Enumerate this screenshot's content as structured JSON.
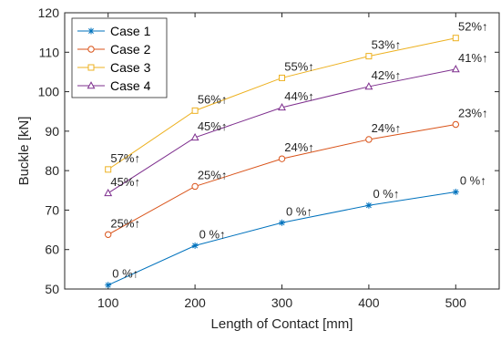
{
  "chart_data": {
    "type": "line",
    "xlabel": "Length of Contact [mm]",
    "ylabel": "Buckle [kN]",
    "xlim": [
      50,
      550
    ],
    "ylim": [
      50,
      120
    ],
    "xticks": [
      100,
      200,
      300,
      400,
      500
    ],
    "yticks": [
      50,
      60,
      70,
      80,
      90,
      100,
      110,
      120
    ],
    "legend_position": "top-left",
    "grid": false,
    "x": [
      100,
      200,
      300,
      400,
      500
    ],
    "series": [
      {
        "name": "Case 1",
        "color": "#0072BD",
        "marker": "asterisk",
        "values": [
          51,
          61,
          66.8,
          71.2,
          74.6
        ],
        "annotations": [
          "0 %↑",
          "0 %↑",
          "0 %↑",
          "0 %↑",
          "0 %↑"
        ]
      },
      {
        "name": "Case 2",
        "color": "#D95319",
        "marker": "circle",
        "values": [
          63.8,
          76,
          83,
          87.9,
          91.7
        ],
        "annotations": [
          "25%↑",
          "25%↑",
          "24%↑",
          "24%↑",
          "23%↑"
        ]
      },
      {
        "name": "Case 3",
        "color": "#EDB120",
        "marker": "square",
        "values": [
          80.3,
          95.2,
          103.5,
          109,
          113.6
        ],
        "annotations": [
          "57%↑",
          "56%↑",
          "55%↑",
          "53%↑",
          "52%↑"
        ]
      },
      {
        "name": "Case 4",
        "color": "#7E2F8E",
        "marker": "triangle",
        "values": [
          74.3,
          88.4,
          96,
          101.3,
          105.7
        ],
        "annotations": [
          "45%↑",
          "45%↑",
          "44%↑",
          "42%↑",
          "41%↑"
        ]
      }
    ]
  }
}
